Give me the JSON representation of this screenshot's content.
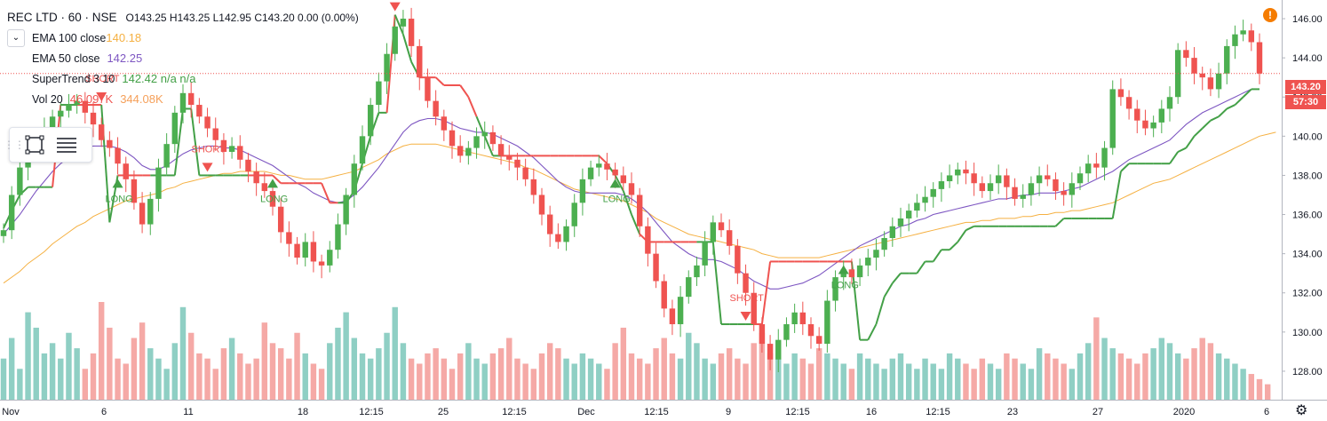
{
  "header": {
    "symbol": "REC LTD · 60 · NSE",
    "ohlc": "O143.25  H143.25  L142.95  C143.20  0.00 (0.00%)"
  },
  "indicators": [
    {
      "label": "EMA 100 close",
      "value": "140.18",
      "color": "#f5b041"
    },
    {
      "label": "EMA 50 close",
      "value": "142.25",
      "color": "#7e57c2"
    },
    {
      "label": "SuperTrend 3 10",
      "value": "142.42  n/a  n/a",
      "color": "#43a047"
    },
    {
      "label": "Vol 20",
      "value": "46.097K",
      "value2": "344.08K",
      "color": "#ef5350"
    }
  ],
  "price_tags": {
    "last": "143.20",
    "countdown": "57:30"
  },
  "icons": {
    "warning": "warning-icon",
    "settings": "gear-icon",
    "rectangle": "rectangle-tool-icon",
    "lines": "fib-lines-icon"
  },
  "colors": {
    "up": "#4caf50",
    "down": "#ef5350",
    "vol_up": "#8fcfc4",
    "vol_down": "#f5a9a6",
    "ema100": "#f5b041",
    "ema50": "#7e57c2",
    "st_up": "#43a047",
    "st_down": "#ef5350"
  },
  "chart_data": {
    "type": "candlestick",
    "ylim": [
      127,
      146.5
    ],
    "y_ticks": [
      "146.00",
      "144.00",
      "142.00",
      "140.00",
      "138.00",
      "136.00",
      "134.00",
      "132.00",
      "130.00",
      "128.00"
    ],
    "x_tick_labels": [
      "Nov",
      "6",
      "11",
      "18",
      "12:15",
      "25",
      "12:15",
      "Dec",
      "12:15",
      "9",
      "12:15",
      "16",
      "12:15",
      "23",
      "27",
      "2020",
      "6"
    ],
    "signals": [
      {
        "text": "SHORT",
        "type": "short"
      },
      {
        "text": "LONG",
        "type": "long"
      },
      {
        "text": "SHORT",
        "type": "short"
      },
      {
        "text": "LONG",
        "type": "long"
      },
      {
        "text": "SHORT",
        "type": "short"
      },
      {
        "text": "LONG",
        "type": "long"
      },
      {
        "text": "SHORT",
        "type": "short"
      },
      {
        "text": "LONG",
        "type": "long"
      }
    ],
    "closes": [
      135.2,
      137.0,
      138.4,
      139.2,
      139.8,
      140.4,
      141.0,
      141.3,
      141.6,
      141.8,
      141.2,
      140.6,
      139.8,
      139.4,
      138.6,
      137.8,
      136.6,
      135.5,
      136.8,
      138.4,
      139.6,
      141.2,
      142.2,
      141.6,
      141.0,
      140.4,
      139.8,
      139.2,
      139.5,
      138.8,
      138.2,
      137.6,
      137.2,
      136.4,
      135.1,
      134.5,
      133.8,
      134.6,
      133.6,
      133.4,
      134.2,
      135.5,
      137.0,
      138.6,
      140.0,
      141.6,
      142.8,
      144.2,
      145.6,
      146.0,
      144.6,
      143.0,
      141.8,
      141.0,
      140.3,
      139.5,
      139.0,
      139.4,
      140.0,
      140.2,
      139.6,
      139.0,
      138.8,
      138.4,
      137.8,
      137.0,
      136.0,
      135.0,
      134.6,
      135.4,
      136.6,
      137.8,
      138.4,
      138.6,
      138.3,
      138.0,
      137.6,
      137.0,
      135.4,
      134.0,
      132.6,
      131.2,
      130.4,
      131.8,
      132.8,
      133.4,
      134.6,
      135.6,
      135.2,
      134.4,
      133.0,
      132.0,
      130.4,
      129.4,
      128.6,
      129.6,
      130.4,
      131.0,
      130.4,
      129.8,
      129.4,
      131.6,
      132.8,
      133.2,
      132.8,
      133.4,
      133.8,
      134.2,
      134.8,
      135.4,
      135.8,
      136.2,
      136.6,
      136.9,
      137.3,
      137.7,
      138.0,
      138.3,
      138.1,
      137.6,
      137.2,
      137.6,
      138.0,
      137.4,
      136.8,
      137.0,
      137.6,
      138.0,
      137.8,
      137.2,
      137.0,
      137.6,
      138.1,
      138.6,
      138.4,
      139.4,
      142.4,
      142.0,
      141.4,
      140.8,
      140.4,
      140.7,
      141.4,
      142.0,
      144.4,
      144.0,
      143.2,
      143.0,
      142.4,
      143.2,
      144.6,
      145.2,
      145.4,
      144.8,
      143.2
    ],
    "ema100": [
      132.5,
      132.8,
      133.1,
      133.5,
      133.8,
      134.1,
      134.5,
      134.8,
      135.1,
      135.4,
      135.6,
      135.9,
      136.1,
      136.3,
      136.5,
      136.7,
      136.8,
      136.9,
      137.0,
      137.1,
      137.3,
      137.4,
      137.6,
      137.7,
      137.8,
      137.9,
      138.0,
      138.1,
      138.1,
      138.2,
      138.2,
      138.2,
      138.2,
      138.1,
      138.0,
      138.0,
      137.9,
      137.8,
      137.8,
      137.8,
      137.9,
      138.0,
      138.1,
      138.2,
      138.4,
      138.6,
      138.8,
      139.1,
      139.3,
      139.5,
      139.6,
      139.6,
      139.6,
      139.6,
      139.5,
      139.4,
      139.3,
      139.2,
      139.1,
      139.0,
      138.9,
      138.8,
      138.7,
      138.6,
      138.4,
      138.3,
      138.1,
      137.9,
      137.7,
      137.5,
      137.3,
      137.2,
      137.1,
      137.0,
      136.9,
      136.8,
      136.7,
      136.5,
      136.3,
      136.1,
      135.8,
      135.6,
      135.4,
      135.2,
      135.0,
      134.9,
      134.8,
      134.7,
      134.6,
      134.5,
      134.4,
      134.3,
      134.2,
      134.0,
      133.9,
      133.8,
      133.8,
      133.8,
      133.8,
      133.8,
      133.8,
      133.9,
      134.0,
      134.1,
      134.2,
      134.3,
      134.4,
      134.5,
      134.6,
      134.7,
      134.8,
      134.9,
      135.0,
      135.1,
      135.2,
      135.3,
      135.4,
      135.5,
      135.6,
      135.6,
      135.7,
      135.7,
      135.8,
      135.8,
      135.8,
      135.9,
      135.9,
      136.0,
      136.0,
      136.1,
      136.1,
      136.2,
      136.2,
      136.3,
      136.4,
      136.5,
      136.6,
      136.8,
      137.0,
      137.2,
      137.4,
      137.6,
      137.7,
      137.8,
      138.0,
      138.2,
      138.4,
      138.6,
      138.8,
      139.0,
      139.2,
      139.4,
      139.6,
      139.8,
      140.0,
      140.1,
      140.2
    ],
    "ema50": [
      135.0,
      135.5,
      136.0,
      136.6,
      137.2,
      137.7,
      138.2,
      138.6,
      138.9,
      139.2,
      139.4,
      139.5,
      139.5,
      139.5,
      139.4,
      139.2,
      138.9,
      138.5,
      138.3,
      138.3,
      138.5,
      138.8,
      139.1,
      139.3,
      139.4,
      139.5,
      139.5,
      139.4,
      139.4,
      139.3,
      139.1,
      138.9,
      138.7,
      138.5,
      138.2,
      137.9,
      137.6,
      137.4,
      137.1,
      136.9,
      136.7,
      136.6,
      136.7,
      137.0,
      137.4,
      137.9,
      138.4,
      139.0,
      139.6,
      140.2,
      140.6,
      140.8,
      140.9,
      140.9,
      140.8,
      140.6,
      140.4,
      140.3,
      140.2,
      140.2,
      140.1,
      139.9,
      139.7,
      139.5,
      139.2,
      138.9,
      138.5,
      138.1,
      137.7,
      137.4,
      137.2,
      137.1,
      137.1,
      137.1,
      137.1,
      137.1,
      137.0,
      136.8,
      136.5,
      136.1,
      135.6,
      135.1,
      134.6,
      134.3,
      134.0,
      133.8,
      133.7,
      133.7,
      133.6,
      133.4,
      133.2,
      132.9,
      132.6,
      132.4,
      132.2,
      132.2,
      132.3,
      132.4,
      132.5,
      132.7,
      132.9,
      133.2,
      133.5,
      133.8,
      134.1,
      134.4,
      134.6,
      134.8,
      135.0,
      135.2,
      135.4,
      135.5,
      135.7,
      135.8,
      136.0,
      136.1,
      136.2,
      136.3,
      136.4,
      136.5,
      136.6,
      136.7,
      136.8,
      136.8,
      136.9,
      137.0,
      137.0,
      137.1,
      137.1,
      137.1,
      137.2,
      137.3,
      137.4,
      137.6,
      137.8,
      138.0,
      138.2,
      138.5,
      138.8,
      139.0,
      139.2,
      139.4,
      139.6,
      139.8,
      140.2,
      140.6,
      140.9,
      141.2,
      141.4,
      141.6,
      141.8,
      142.0,
      142.2,
      142.4
    ],
    "supertrend": [
      135.3,
      136.2,
      137.0,
      137.4,
      137.4,
      137.4,
      137.4,
      141.6,
      141.6,
      141.6,
      141.6,
      141.6,
      141.6,
      135.6,
      138.0,
      138.0,
      138.0,
      138.0,
      138.0,
      138.0,
      138.0,
      138.0,
      141.4,
      141.4,
      138.0,
      138.0,
      138.0,
      138.0,
      138.0,
      138.0,
      138.0,
      138.0,
      138.0,
      138.0,
      137.6,
      137.6,
      137.6,
      137.6,
      137.6,
      137.6,
      136.6,
      136.6,
      136.6,
      137.2,
      138.6,
      140.0,
      141.2,
      141.2,
      146.2,
      145.2,
      143.8,
      143.0,
      143.0,
      143.0,
      142.6,
      142.6,
      142.6,
      142.0,
      141.0,
      140.0,
      139.0,
      139.0,
      139.0,
      139.0,
      139.0,
      139.0,
      139.0,
      139.0,
      139.0,
      139.0,
      139.0,
      139.0,
      139.0,
      139.0,
      138.6,
      138.0,
      137.2,
      136.0,
      135.0,
      134.6,
      134.6,
      134.6,
      134.6,
      134.6,
      134.6,
      134.6,
      134.6,
      134.6,
      130.4,
      130.4,
      130.4,
      130.4,
      130.4,
      130.4,
      133.6,
      133.6,
      133.6,
      133.6,
      133.6,
      133.6,
      133.6,
      133.6,
      133.6,
      133.6,
      133.6,
      129.6,
      129.6,
      130.4,
      131.8,
      132.5,
      133.0,
      133.0,
      133.0,
      133.6,
      133.6,
      134.2,
      134.2,
      134.6,
      135.2,
      135.4,
      135.4,
      135.4,
      135.4,
      135.4,
      135.4,
      135.4,
      135.4,
      135.4,
      135.4,
      135.4,
      135.8,
      135.8,
      135.8,
      135.8,
      135.8,
      135.8,
      135.8,
      138.2,
      138.6,
      138.6,
      138.6,
      138.6,
      138.6,
      138.6,
      139.2,
      139.4,
      140.0,
      140.4,
      140.8,
      141.0,
      141.4,
      141.6,
      142.0,
      142.4,
      142.4,
      142.4,
      142.4
    ],
    "volumes": [
      40,
      60,
      30,
      85,
      70,
      45,
      55,
      40,
      65,
      50,
      30,
      45,
      95,
      70,
      40,
      35,
      60,
      75,
      50,
      40,
      30,
      55,
      90,
      65,
      45,
      40,
      30,
      50,
      60,
      45,
      35,
      40,
      75,
      55,
      50,
      40,
      65,
      45,
      35,
      30,
      55,
      70,
      85,
      60,
      45,
      40,
      50,
      65,
      90,
      55,
      40,
      35,
      45,
      50,
      40,
      30,
      45,
      55,
      40,
      35,
      45,
      50,
      60,
      40,
      35,
      30,
      45,
      55,
      50,
      40,
      35,
      45,
      40,
      35,
      30,
      55,
      70,
      45,
      40,
      35,
      50,
      60,
      45,
      40,
      65,
      55,
      40,
      35,
      45,
      50,
      40,
      35,
      55,
      65,
      45,
      40,
      35,
      45,
      40,
      35,
      50,
      45,
      40,
      35,
      30,
      45,
      40,
      35,
      30,
      40,
      45,
      35,
      30,
      40,
      35,
      30,
      45,
      40,
      35,
      30,
      40,
      35,
      30,
      45,
      40,
      35,
      30,
      50,
      45,
      40,
      35,
      30,
      45,
      55,
      80,
      60,
      50,
      45,
      40,
      35,
      45,
      50,
      60,
      55,
      45,
      40,
      50,
      60,
      55,
      45,
      40,
      35,
      30,
      25,
      20,
      15
    ]
  }
}
